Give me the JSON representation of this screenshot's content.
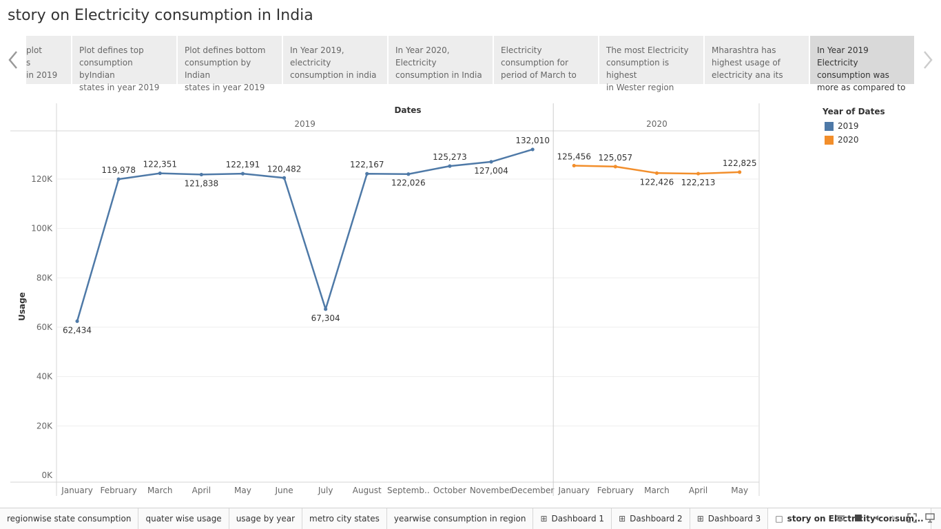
{
  "page": {
    "title": "story on Electricity consumption in India"
  },
  "story": {
    "points": [
      {
        "text": "plot\ns\nin 2019",
        "active": false
      },
      {
        "text": "Plot defines top\nconsumption byIndian\nstates in year  2019",
        "active": false
      },
      {
        "text": "Plot defines bottom\nconsumption by Indian\nstates in year 2019",
        "active": false
      },
      {
        "text": "In Year 2019,\nelectricity\nconsumption in india",
        "active": false
      },
      {
        "text": "In Year 2020,\nElectricity\nconsumption in India",
        "active": false
      },
      {
        "text": "Electricity\nconsumption for\nperiod of March to",
        "active": false
      },
      {
        "text": "The most Electricity\nconsumption is highest\nin Wester region",
        "active": false
      },
      {
        "text": "Mharashtra  has\nhighest usage of\nelectricity  ana its",
        "active": false
      },
      {
        "text": "In Year 2019 Electricity\nconsumption was\nmore as compared to",
        "active": true
      }
    ]
  },
  "legend": {
    "title": "Year of Dates",
    "items": [
      {
        "label": "2019",
        "color": "#4e79a7"
      },
      {
        "label": "2020",
        "color": "#f28e2b"
      }
    ]
  },
  "chart_data": {
    "type": "line",
    "title": "",
    "xlabel": "Dates",
    "ylabel": "Usage",
    "ylim": [
      0,
      140000
    ],
    "yticks": [
      0,
      20000,
      40000,
      60000,
      80000,
      100000,
      120000
    ],
    "ytick_labels": [
      "0K",
      "20K",
      "40K",
      "60K",
      "80K",
      "100K",
      "120K"
    ],
    "grid": true,
    "legend_position": "right",
    "panels": [
      {
        "name": "2019",
        "color": "#4e79a7",
        "categories": [
          "January",
          "February",
          "March",
          "April",
          "May",
          "June",
          "July",
          "August",
          "Septemb..",
          "October",
          "November",
          "December"
        ],
        "values": [
          62434,
          119978,
          122351,
          121838,
          122191,
          120482,
          67304,
          122167,
          122026,
          125273,
          127004,
          132010
        ],
        "labels": [
          "62,434",
          "119,978",
          "122,351",
          "121,838",
          "122,191",
          "120,482",
          "67,304",
          "122,167",
          "122,026",
          "125,273",
          "127,004",
          "132,010"
        ]
      },
      {
        "name": "2020",
        "color": "#f28e2b",
        "categories": [
          "January",
          "February",
          "March",
          "April",
          "May"
        ],
        "values": [
          125456,
          125057,
          122426,
          122213,
          122825
        ],
        "labels": [
          "125,456",
          "125,057",
          "122,426",
          "122,213",
          "122,825"
        ]
      }
    ]
  },
  "tabs": [
    {
      "label": "regionwise state consumption",
      "icon": "",
      "active": false
    },
    {
      "label": "quater wise usage",
      "icon": "",
      "active": false
    },
    {
      "label": "usage by year",
      "icon": "",
      "active": false
    },
    {
      "label": "metro city states",
      "icon": "",
      "active": false
    },
    {
      "label": "yearwise consumption in region",
      "icon": "",
      "active": false
    },
    {
      "label": "Dashboard 1",
      "icon": "dashboard-icon",
      "active": false
    },
    {
      "label": "Dashboard 2",
      "icon": "dashboard-icon",
      "active": false
    },
    {
      "label": "Dashboard 3",
      "icon": "dashboard-icon",
      "active": false
    },
    {
      "label": "story on Electricity consum...",
      "icon": "story-icon",
      "active": true
    }
  ]
}
